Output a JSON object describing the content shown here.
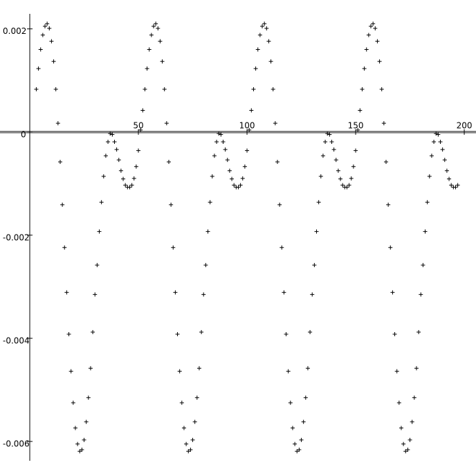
{
  "chart_data": {
    "type": "scatter",
    "color": "#000000",
    "xlim": [
      -13.7,
      205.4
    ],
    "ylim": [
      -0.00667,
      0.00256
    ],
    "xticks": [
      50,
      100,
      150,
      200
    ],
    "yticks": [
      0.002,
      0,
      -0.002,
      -0.004,
      -0.006
    ],
    "x": [
      3,
      4,
      5,
      6,
      7,
      8,
      9,
      10,
      11,
      12,
      13,
      14,
      15,
      16,
      17,
      18,
      19,
      20,
      21,
      22,
      23,
      24,
      25,
      26,
      27,
      28,
      29,
      30,
      31,
      32,
      33,
      34,
      35,
      36,
      37,
      38,
      39,
      40,
      41,
      42,
      43,
      44,
      45,
      46,
      47,
      48,
      49,
      50,
      51,
      52,
      53,
      54,
      55,
      56,
      57,
      58,
      59,
      60,
      61,
      62,
      63,
      64,
      65,
      66,
      67,
      68,
      69,
      70,
      71,
      72,
      73,
      74,
      75,
      76,
      77,
      78,
      79,
      80,
      81,
      82,
      83,
      84,
      85,
      86,
      87,
      88,
      89,
      90,
      91,
      92,
      93,
      94,
      95,
      96,
      97,
      98,
      99,
      100,
      101,
      102,
      103,
      104,
      105,
      106,
      107,
      108,
      109,
      110,
      111,
      112,
      113,
      114,
      115,
      116,
      117,
      118,
      119,
      120,
      121,
      122,
      123,
      124,
      125,
      126,
      127,
      128,
      129,
      130,
      131,
      132,
      133,
      134,
      135,
      136,
      137,
      138,
      139,
      140,
      141,
      142,
      143,
      144,
      145,
      146,
      147,
      148,
      149,
      150,
      151,
      152,
      153,
      154,
      155,
      156,
      157,
      158,
      159,
      160,
      161,
      162,
      163,
      164,
      165,
      166,
      167,
      168,
      169,
      170,
      171,
      172,
      173,
      174,
      175,
      176,
      177,
      178,
      179,
      180,
      181,
      182,
      183,
      184,
      185,
      186,
      187,
      188,
      189,
      190,
      191,
      192,
      193,
      194,
      195,
      196,
      197
    ],
    "values": [
      0.00083,
      0.00123,
      0.0016,
      0.00188,
      0.00205,
      0.0021,
      0.00201,
      0.00176,
      0.00137,
      0.00083,
      0.00017,
      -0.00058,
      -0.00141,
      -0.00224,
      -0.00311,
      -0.00392,
      -0.00464,
      -0.00525,
      -0.00574,
      -0.00605,
      -0.00619,
      -0.00616,
      -0.00597,
      -0.00562,
      -0.00515,
      -0.00458,
      -0.00388,
      -0.00315,
      -0.00258,
      -0.00193,
      -0.00136,
      -0.00086,
      -0.00046,
      -0.00019,
      -3e-05,
      -5e-05,
      -0.00019,
      -0.00034,
      -0.00054,
      -0.00075,
      -0.00091,
      -0.00103,
      -0.00107,
      -0.00107,
      -0.00103,
      -0.0009,
      -0.00067,
      -0.00036,
      4e-05,
      0.00042,
      0.00083,
      0.00123,
      0.0016,
      0.00188,
      0.00205,
      0.0021,
      0.00201,
      0.00176,
      0.00137,
      0.00083,
      0.00017,
      -0.00058,
      -0.00141,
      -0.00224,
      -0.00311,
      -0.00392,
      -0.00464,
      -0.00525,
      -0.00574,
      -0.00605,
      -0.00619,
      -0.00616,
      -0.00597,
      -0.00562,
      -0.00515,
      -0.00458,
      -0.00388,
      -0.00315,
      -0.00258,
      -0.00193,
      -0.00136,
      -0.00086,
      -0.00046,
      -0.00019,
      -3e-05,
      -5e-05,
      -0.00019,
      -0.00034,
      -0.00054,
      -0.00075,
      -0.00091,
      -0.00103,
      -0.00107,
      -0.00107,
      -0.00103,
      -0.0009,
      -0.00067,
      -0.00036,
      4e-05,
      0.00042,
      0.00083,
      0.00123,
      0.0016,
      0.00188,
      0.00205,
      0.0021,
      0.00201,
      0.00176,
      0.00137,
      0.00083,
      0.00017,
      -0.00058,
      -0.00141,
      -0.00224,
      -0.00311,
      -0.00392,
      -0.00464,
      -0.00525,
      -0.00574,
      -0.00605,
      -0.00619,
      -0.00616,
      -0.00597,
      -0.00562,
      -0.00515,
      -0.00458,
      -0.00388,
      -0.00315,
      -0.00258,
      -0.00193,
      -0.00136,
      -0.00086,
      -0.00046,
      -0.00019,
      -3e-05,
      -5e-05,
      -0.00019,
      -0.00034,
      -0.00054,
      -0.00075,
      -0.00091,
      -0.00103,
      -0.00107,
      -0.00107,
      -0.00103,
      -0.0009,
      -0.00067,
      -0.00036,
      4e-05,
      0.00042,
      0.00083,
      0.00123,
      0.0016,
      0.00188,
      0.00205,
      0.0021,
      0.00201,
      0.00176,
      0.00137,
      0.00083,
      0.00017,
      -0.00058,
      -0.00141,
      -0.00224,
      -0.00311,
      -0.00392,
      -0.00464,
      -0.00525,
      -0.00574,
      -0.00605,
      -0.00619,
      -0.00616,
      -0.00597,
      -0.00562,
      -0.00515,
      -0.00458,
      -0.00388,
      -0.00315,
      -0.00258,
      -0.00193,
      -0.00136,
      -0.00086,
      -0.00046,
      -0.00019,
      -3e-05,
      -5e-05,
      -0.00019,
      -0.00034,
      -0.00054,
      -0.00075,
      -0.00091,
      -0.00103,
      -0.00107,
      -0.00107,
      -0.00103
    ]
  }
}
